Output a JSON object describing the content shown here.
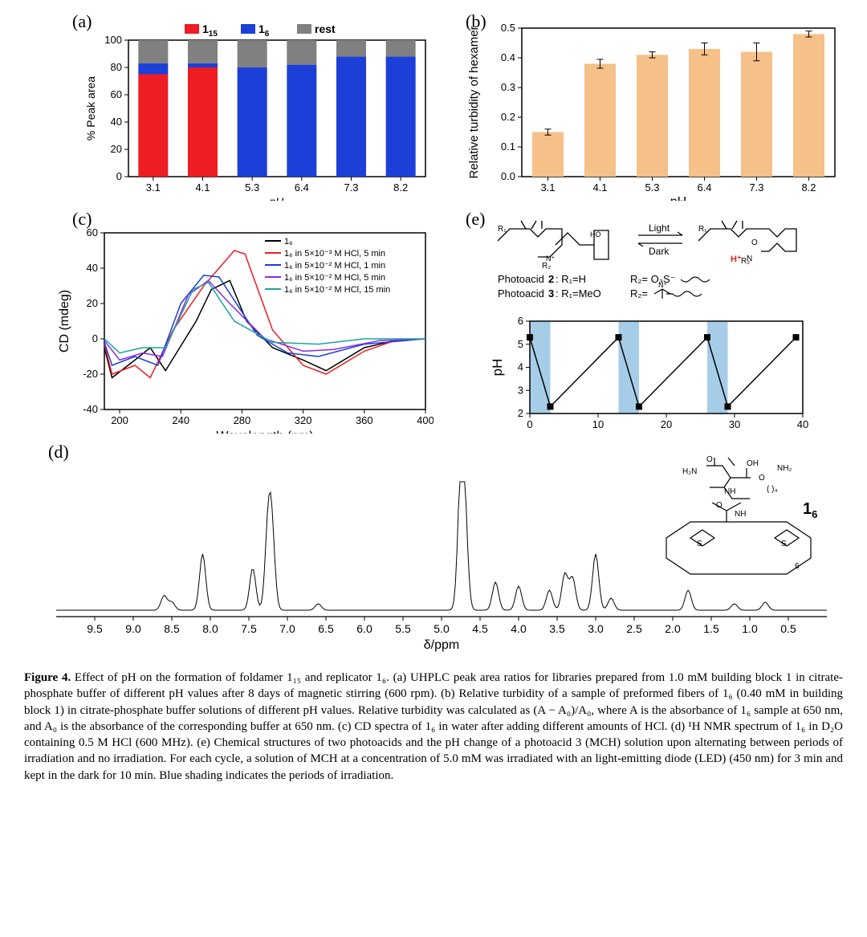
{
  "labels": {
    "a": "(a)",
    "b": "(b)",
    "c": "(c)",
    "d": "(d)",
    "e": "(e)"
  },
  "panelA": {
    "type": "stacked-bar",
    "categories": [
      "3.1",
      "4.1",
      "5.3",
      "6.4",
      "7.3",
      "8.2"
    ],
    "series": [
      {
        "name": "1_15",
        "color": "#ee1c23",
        "values": [
          75,
          80,
          0,
          0,
          0,
          0
        ]
      },
      {
        "name": "1_6",
        "color": "#1c3fd7",
        "values": [
          8,
          3,
          80,
          82,
          88,
          88
        ]
      },
      {
        "name": "rest",
        "color": "#808080",
        "values": [
          17,
          17,
          20,
          18,
          12,
          12
        ]
      }
    ],
    "ylabel": "% Peak area",
    "xlabel": "pH",
    "ylim": [
      0,
      100
    ],
    "ytick_step": 20,
    "bar_width": 0.6,
    "background": "#ffffff",
    "axis_color": "#000000"
  },
  "panelB": {
    "type": "bar",
    "categories": [
      "3.1",
      "4.1",
      "5.3",
      "6.4",
      "7.3",
      "8.2"
    ],
    "values": [
      0.15,
      0.38,
      0.41,
      0.43,
      0.42,
      0.48
    ],
    "errors": [
      0.01,
      0.015,
      0.01,
      0.02,
      0.03,
      0.01
    ],
    "bar_color": "#f6c089",
    "ylabel": "Relative turbidity of hexamer",
    "xlabel": "pH",
    "ylim": [
      0,
      0.5
    ],
    "ytick_step": 0.1,
    "bar_width": 0.6,
    "background": "#ffffff",
    "axis_color": "#000000"
  },
  "panelC": {
    "type": "line",
    "xlabel": "Wavelength (nm)",
    "ylabel": "CD (mdeg)",
    "xlim": [
      190,
      400
    ],
    "xtick_step": 40,
    "ylim": [
      -40,
      60
    ],
    "ytick_step": 20,
    "background": "#ffffff",
    "axis_color": "#000000",
    "line_width": 1.5,
    "series": [
      {
        "name": "1_6",
        "color": "#000000",
        "points": [
          [
            190,
            -5
          ],
          [
            195,
            -22
          ],
          [
            210,
            -12
          ],
          [
            220,
            -5
          ],
          [
            230,
            -18
          ],
          [
            250,
            10
          ],
          [
            260,
            28
          ],
          [
            272,
            33
          ],
          [
            283,
            10
          ],
          [
            300,
            -5
          ],
          [
            320,
            -12
          ],
          [
            335,
            -18
          ],
          [
            360,
            -5
          ],
          [
            380,
            -1
          ],
          [
            400,
            0
          ]
        ]
      },
      {
        "name": "1_6 in 5×10⁻³ M HCl, 5 min",
        "color": "#ee1c23",
        "points": [
          [
            190,
            -3
          ],
          [
            195,
            -20
          ],
          [
            210,
            -15
          ],
          [
            220,
            -22
          ],
          [
            235,
            5
          ],
          [
            255,
            30
          ],
          [
            275,
            50
          ],
          [
            282,
            48
          ],
          [
            300,
            5
          ],
          [
            320,
            -15
          ],
          [
            335,
            -20
          ],
          [
            360,
            -7
          ],
          [
            380,
            -1
          ],
          [
            400,
            0
          ]
        ]
      },
      {
        "name": "1_6 in 5×10⁻² M HCl, 1 min",
        "color": "#1c3fd7",
        "points": [
          [
            190,
            -2
          ],
          [
            195,
            -15
          ],
          [
            210,
            -10
          ],
          [
            225,
            -15
          ],
          [
            240,
            20
          ],
          [
            255,
            36
          ],
          [
            265,
            35
          ],
          [
            290,
            2
          ],
          [
            310,
            -8
          ],
          [
            330,
            -10
          ],
          [
            360,
            -3
          ],
          [
            400,
            0
          ]
        ]
      },
      {
        "name": "1_6 in 5×10⁻² M HCl, 5 min",
        "color": "#8a2be2",
        "points": [
          [
            190,
            -1
          ],
          [
            200,
            -12
          ],
          [
            215,
            -8
          ],
          [
            228,
            -10
          ],
          [
            245,
            25
          ],
          [
            258,
            33
          ],
          [
            272,
            20
          ],
          [
            295,
            0
          ],
          [
            320,
            -7
          ],
          [
            340,
            -6
          ],
          [
            370,
            -1
          ],
          [
            400,
            0
          ]
        ]
      },
      {
        "name": "1_6 in 5×10⁻² M HCl, 15 min",
        "color": "#1aa59a",
        "points": [
          [
            190,
            0
          ],
          [
            200,
            -8
          ],
          [
            215,
            -5
          ],
          [
            230,
            -5
          ],
          [
            248,
            28
          ],
          [
            258,
            32
          ],
          [
            275,
            10
          ],
          [
            300,
            -2
          ],
          [
            330,
            -3
          ],
          [
            360,
            0
          ],
          [
            400,
            0
          ]
        ]
      }
    ]
  },
  "panelE": {
    "type": "line",
    "xlabel": "Time (min)",
    "ylabel": "pH",
    "xlim": [
      0,
      40
    ],
    "xtick_step": 10,
    "ylim": [
      2,
      6
    ],
    "ytick_step": 1,
    "background": "#ffffff",
    "axis_color": "#000000",
    "shade": [
      [
        0,
        3
      ],
      [
        13,
        16
      ],
      [
        26,
        29
      ]
    ],
    "shade_color": "#a6cde8",
    "points": [
      [
        0,
        5.3
      ],
      [
        3,
        2.3
      ],
      [
        13,
        5.3
      ],
      [
        16,
        2.3
      ],
      [
        26,
        5.3
      ],
      [
        29,
        2.3
      ],
      [
        39,
        5.3
      ]
    ],
    "marker": "square",
    "marker_color": "#000000",
    "line_color": "#000000",
    "scheme_labels": {
      "light": "Light",
      "dark": "Dark",
      "photoacid2": "Photoacid 2: R₁=H",
      "photoacid3": "Photoacid 3: R₁=MeO",
      "r2a": "R₂=",
      "r2b": "R₂=",
      "h_plus": "H⁺"
    },
    "scheme_colors": {
      "h_plus": "#e02020"
    }
  },
  "panelD": {
    "type": "nmr",
    "xlabel": "δ/ppm",
    "xlim": [
      10,
      0
    ],
    "xtick_step": 0.5,
    "axis_color": "#000000",
    "line_color": "#000000",
    "peaks": [
      [
        8.6,
        18
      ],
      [
        8.5,
        10
      ],
      [
        8.1,
        70
      ],
      [
        7.45,
        52
      ],
      [
        7.25,
        95
      ],
      [
        7.2,
        85
      ],
      [
        6.6,
        8
      ],
      [
        4.75,
        150
      ],
      [
        4.7,
        110
      ],
      [
        4.3,
        35
      ],
      [
        4.0,
        30
      ],
      [
        3.6,
        25
      ],
      [
        3.4,
        45
      ],
      [
        3.3,
        40
      ],
      [
        3.0,
        70
      ],
      [
        2.8,
        15
      ],
      [
        1.8,
        25
      ],
      [
        1.2,
        8
      ],
      [
        0.8,
        10
      ]
    ],
    "molecule_label": "1_6"
  },
  "caption_parts": {
    "lead": "Figure 4.",
    "text": " Effect of pH on the formation of foldamer 1₁₅ and replicator 1₆. (a) UHPLC peak area ratios for libraries prepared from 1.0 mM building block 1 in citrate-phosphate buffer of different pH values after 8 days of magnetic stirring (600 rpm). (b) Relative turbidity of a sample of preformed fibers of 1₆ (0.40 mM in building block 1) in citrate-phosphate buffer solutions of different pH values. Relative turbidity was calculated as (A − A₀)/A₀, where A is the absorbance of 1₆ sample at 650 nm, and A₀ is the absorbance of the corresponding buffer at 650 nm. (c) CD spectra of 1₆ in water after adding different amounts of HCl. (d) ¹H NMR spectrum of 1₆ in D₂O containing 0.5 M HCl (600 MHz). (e) Chemical structures of two photoacids and the pH change of a photoacid 3 (MCH) solution upon alternating between periods of irradiation and no irradiation. For each cycle, a solution of MCH at a concentration of 5.0 mM was irradiated with an light-emitting diode (LED) (450 nm) for 3 min and kept in the dark for 10 min. Blue shading indicates the periods of irradiation."
  }
}
